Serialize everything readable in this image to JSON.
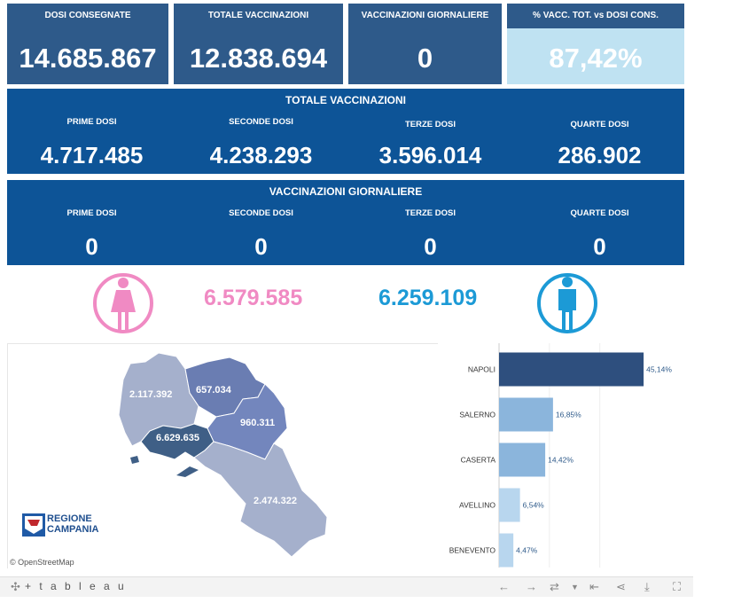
{
  "kpis": [
    {
      "label": "DOSI  CONSEGNATE",
      "value": "14.685.867"
    },
    {
      "label": "TOTALE VACCINAZIONI",
      "value": "12.838.694"
    },
    {
      "label": "VACCINAZIONI GIORNALIERE",
      "value": "0"
    },
    {
      "label": "% VACC. TOT. vs DOSI CONS.",
      "value": "87,42%"
    }
  ],
  "totale": {
    "title": "TOTALE VACCINAZIONI",
    "cols": [
      {
        "label": "PRIME DOSI",
        "value": "4.717.485"
      },
      {
        "label": "SECONDE DOSI",
        "value": "4.238.293"
      },
      {
        "label": "TERZE DOSI",
        "value": "3.596.014"
      },
      {
        "label": "QUARTE DOSI",
        "value": "286.902"
      }
    ]
  },
  "giornaliere": {
    "title": "VACCINAZIONI GIORNALIERE",
    "cols": [
      {
        "label": "PRIME DOSI",
        "value": "0"
      },
      {
        "label": "SECONDE DOSI",
        "value": "0"
      },
      {
        "label": "TERZE DOSI",
        "value": "0"
      },
      {
        "label": "QUARTE DOSI",
        "value": "0"
      }
    ]
  },
  "gender": {
    "female_value": "6.579.585",
    "male_value": "6.259.109",
    "female_color": "#f08ac3",
    "male_color": "#1c9ad6"
  },
  "map": {
    "regions": [
      {
        "name": "Caserta",
        "value": "2.117.392",
        "color": "#a5b0cc"
      },
      {
        "name": "Benevento",
        "value": "657.034",
        "color": "#6a7db2"
      },
      {
        "name": "Avellino",
        "value": "960.311",
        "color": "#7386bd"
      },
      {
        "name": "Napoli",
        "value": "6.629.635",
        "color": "#3f5f86"
      },
      {
        "name": "Salerno",
        "value": "2.474.322",
        "color": "#a5b0cc"
      }
    ],
    "logo_line1": "REGIONE",
    "logo_line2": "CAMPANIA",
    "attribution": "© OpenStreetMap"
  },
  "chart_data": {
    "type": "bar",
    "orientation": "horizontal",
    "categories": [
      "NAPOLI",
      "SALERNO",
      "CASERTA",
      "AVELLINO",
      "BENEVENTO"
    ],
    "values": [
      45.14,
      16.85,
      14.42,
      6.54,
      4.47
    ],
    "labels": [
      "45,14%",
      "16,85%",
      "14,42%",
      "6,54%",
      "4,47%"
    ],
    "colors": [
      "#2e4f7e",
      "#8bb5dc",
      "#8bb5dc",
      "#b8d6ee",
      "#b8d6ee"
    ],
    "xlim": [
      0,
      50
    ],
    "grid": true
  },
  "footer": {
    "brand": "+ t a b l e a u"
  }
}
